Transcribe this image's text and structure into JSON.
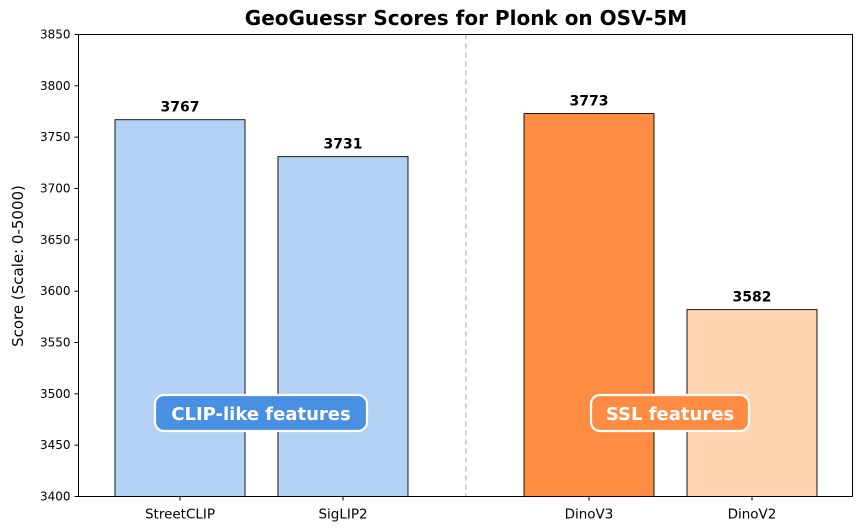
{
  "chart_data": {
    "type": "bar",
    "title": "GeoGuessr Scores for Plonk on OSV-5M",
    "ylabel": "Score (Scale: 0-5000)",
    "xlabel": "",
    "ylim": [
      3400,
      3850
    ],
    "yticks": [
      3400,
      3450,
      3500,
      3550,
      3600,
      3650,
      3700,
      3750,
      3800,
      3850
    ],
    "categories": [
      "StreetCLIP",
      "SigLIP2",
      "DinoV3",
      "DinoV2"
    ],
    "values": [
      3767,
      3731,
      3773,
      3582
    ],
    "bar_colors": [
      "#b3d1f5",
      "#b3d1f5",
      "#ff8c42",
      "#ffd3b0"
    ],
    "grid": false,
    "groups": [
      {
        "label": "CLIP-like features",
        "color": "#4a90e2"
      },
      {
        "label": "SSL features",
        "color": "#ff8c42"
      }
    ],
    "divider": "dashed vertical line between groups"
  }
}
